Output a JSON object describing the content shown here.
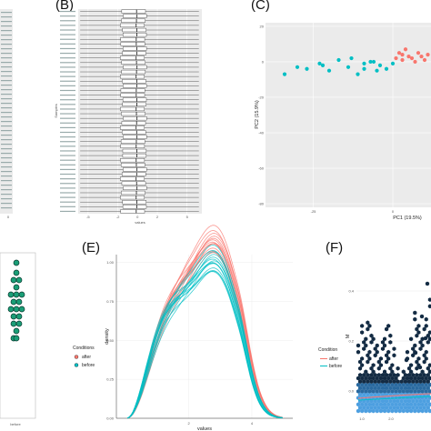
{
  "panels": {
    "B": "(B)",
    "C": "(C)",
    "E": "(E)",
    "F": "(F)"
  },
  "colors": {
    "after": "#F8766D",
    "before": "#00BFC4",
    "panel_bg": "#EBEBEB",
    "hex_dark": "#132B43",
    "hex_light": "#56B1F7",
    "green_point": "#1B9E77"
  },
  "chart_data": [
    {
      "id": "A-partial",
      "type": "heatmap",
      "note_visible": "partial panel, rows of labels",
      "tick_labels_x": [
        "0"
      ]
    },
    {
      "id": "B",
      "type": "box",
      "ylabel": "Samples",
      "xlabel": "values",
      "x_ticks": [
        "-5",
        "-2",
        "0",
        "2",
        "5"
      ],
      "n_rows": 44,
      "median": -0.1,
      "q1": -1.6,
      "q3": 0.8
    },
    {
      "id": "C",
      "type": "scatter",
      "xlabel": "PC1 (19.5%)",
      "ylabel": "PC2 (15.9%)",
      "x_ticks": [
        "-25",
        "0"
      ],
      "y_ticks": [
        "20",
        "0",
        "-20",
        "-40",
        "-60",
        "-80"
      ],
      "xlim": [
        -40,
        12
      ],
      "ylim": [
        -82,
        22
      ],
      "series": [
        {
          "name": "before",
          "points": [
            [
              -34,
              -7
            ],
            [
              -30,
              -3
            ],
            [
              -27,
              -4
            ],
            [
              -23,
              -1
            ],
            [
              -20,
              -5
            ],
            [
              -17,
              1
            ],
            [
              -14,
              -3
            ],
            [
              -11,
              -7
            ],
            [
              -9,
              -1
            ],
            [
              -7,
              0
            ],
            [
              -5,
              -5
            ],
            [
              -4,
              -2
            ],
            [
              -2,
              -4
            ],
            [
              0,
              -1
            ],
            [
              -13,
              2
            ],
            [
              -6,
              0
            ],
            [
              -9,
              -4
            ],
            [
              -22,
              -2
            ]
          ]
        },
        {
          "name": "after",
          "points": [
            [
              1,
              2
            ],
            [
              2,
              5
            ],
            [
              3,
              1
            ],
            [
              4,
              7
            ],
            [
              5,
              3
            ],
            [
              6,
              2
            ],
            [
              7,
              0
            ],
            [
              8,
              5
            ],
            [
              9,
              3
            ],
            [
              10,
              1
            ],
            [
              11,
              4
            ],
            [
              3,
              4
            ]
          ]
        }
      ]
    },
    {
      "id": "D-partial",
      "type": "scatter",
      "x_ticks": [
        "before"
      ],
      "values": [
        1,
        2,
        3,
        4,
        5,
        6,
        7,
        8,
        9,
        10,
        11,
        12,
        13,
        14,
        15,
        16,
        17,
        18,
        19,
        20
      ]
    },
    {
      "id": "E",
      "type": "line",
      "xlabel": "values",
      "ylabel": "density",
      "x_ticks": [
        "2",
        "4"
      ],
      "y_ticks": [
        "0.00",
        "0.25",
        "0.50",
        "0.75",
        "1.00"
      ],
      "xlim": [
        -0.3,
        5.3
      ],
      "ylim": [
        0,
        1.05
      ],
      "legend_title": "Conditions",
      "legend": [
        "after",
        "before"
      ],
      "series": [
        {
          "name": "after",
          "peak": 0.97,
          "mode": 1.85,
          "n_lines": 14
        },
        {
          "name": "before",
          "peak": 0.88,
          "mode": 1.7,
          "n_lines": 14
        }
      ]
    },
    {
      "id": "F",
      "type": "heatmap",
      "xlabel": "",
      "ylabel": "M",
      "x_ticks": [
        "1.0",
        "2.0"
      ],
      "y_ticks": [
        "0.4",
        "0.2",
        "0.0"
      ],
      "legend_title": "Condition",
      "legend": [
        "after",
        "before"
      ]
    }
  ]
}
